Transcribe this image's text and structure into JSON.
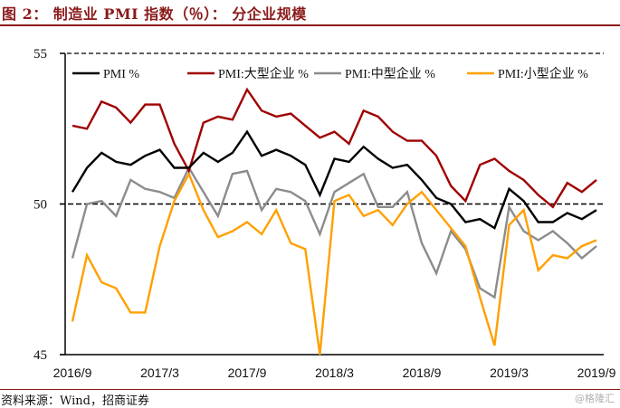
{
  "figure": {
    "title": "图 2：  制造业 PMI 指数（％）：  分企业规模",
    "source": "资料来源：Wind，招商证券",
    "watermark": "@格隆汇"
  },
  "chart_data": {
    "type": "line",
    "title": "图 2：制造业 PMI 指数（％）：分企业规模",
    "xlabel": "",
    "ylabel": "",
    "ylim": [
      45,
      55
    ],
    "yticks": [
      45,
      50,
      55
    ],
    "reference_line": 50,
    "grid": false,
    "legend_position": "top",
    "x": [
      "2016/9",
      "2016/10",
      "2016/11",
      "2016/12",
      "2017/1",
      "2017/2",
      "2017/3",
      "2017/4",
      "2017/5",
      "2017/6",
      "2017/7",
      "2017/8",
      "2017/9",
      "2017/10",
      "2017/11",
      "2017/12",
      "2018/1",
      "2018/2",
      "2018/3",
      "2018/4",
      "2018/5",
      "2018/6",
      "2018/7",
      "2018/8",
      "2018/9",
      "2018/10",
      "2018/11",
      "2018/12",
      "2019/1",
      "2019/2",
      "2019/3",
      "2019/4",
      "2019/5",
      "2019/6",
      "2019/7",
      "2019/8",
      "2019/9"
    ],
    "xtick_labels": [
      "2016/9",
      "2017/3",
      "2017/9",
      "2018/3",
      "2018/9",
      "2019/3",
      "2019/9"
    ],
    "series": [
      {
        "name": "PMI %",
        "color": "#000000",
        "values": [
          50.4,
          51.2,
          51.7,
          51.4,
          51.3,
          51.6,
          51.8,
          51.2,
          51.2,
          51.7,
          51.4,
          51.7,
          52.4,
          51.6,
          51.8,
          51.6,
          51.3,
          50.3,
          51.5,
          51.4,
          51.9,
          51.5,
          51.2,
          51.3,
          50.8,
          50.2,
          50.0,
          49.4,
          49.5,
          49.2,
          50.5,
          50.1,
          49.4,
          49.4,
          49.7,
          49.5,
          49.8
        ]
      },
      {
        "name": "PMI:大型企业 %",
        "color": "#a00000",
        "values": [
          52.6,
          52.5,
          53.4,
          53.2,
          52.7,
          53.3,
          53.3,
          52.0,
          51.1,
          52.7,
          52.9,
          52.8,
          53.8,
          53.1,
          52.9,
          53.0,
          52.6,
          52.2,
          52.4,
          52.0,
          53.1,
          52.9,
          52.4,
          52.1,
          52.1,
          51.6,
          50.6,
          50.1,
          51.3,
          51.5,
          51.1,
          50.8,
          50.3,
          49.9,
          50.7,
          50.4,
          50.8
        ]
      },
      {
        "name": "PMI:中型企业 %",
        "color": "#8c8c8c",
        "values": [
          48.2,
          50.0,
          50.1,
          49.6,
          50.8,
          50.5,
          50.4,
          50.2,
          51.2,
          50.4,
          49.6,
          51.0,
          51.1,
          49.8,
          50.5,
          50.4,
          50.1,
          49.0,
          50.4,
          50.7,
          51.0,
          49.9,
          49.9,
          50.4,
          48.7,
          47.7,
          49.1,
          48.5,
          47.2,
          46.9,
          49.9,
          49.1,
          48.8,
          49.1,
          48.7,
          48.2,
          48.6
        ]
      },
      {
        "name": "PMI:小型企业 %",
        "color": "#ffa000",
        "values": [
          46.1,
          48.3,
          47.4,
          47.2,
          46.4,
          46.4,
          48.6,
          50.1,
          51.0,
          49.8,
          48.9,
          49.1,
          49.4,
          49.0,
          49.8,
          48.7,
          48.5,
          45.0,
          50.1,
          50.3,
          49.6,
          49.8,
          49.3,
          50.0,
          50.4,
          49.8,
          49.2,
          48.6,
          46.9,
          45.3,
          49.3,
          49.8,
          47.8,
          48.3,
          48.2,
          48.6,
          48.8
        ]
      }
    ]
  }
}
